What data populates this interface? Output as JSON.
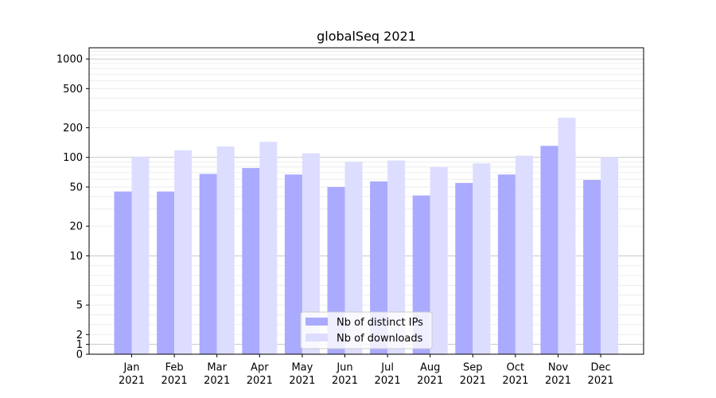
{
  "chart_data": {
    "type": "bar",
    "title": "globalSeq 2021",
    "xlabel": "",
    "ylabel": "",
    "y_scale": "symlog",
    "ylim": [
      0,
      1300
    ],
    "yticks": [
      0,
      1,
      2,
      5,
      10,
      20,
      50,
      100,
      200,
      500,
      1000
    ],
    "ytick_labels": [
      "0",
      "1",
      "2",
      "5",
      "10",
      "20",
      "50",
      "100",
      "200",
      "500",
      "1000"
    ],
    "grid": "horizontal",
    "legend_position": "bottom-center",
    "categories": [
      {
        "month": "Jan",
        "year": "2021"
      },
      {
        "month": "Feb",
        "year": "2021"
      },
      {
        "month": "Mar",
        "year": "2021"
      },
      {
        "month": "Apr",
        "year": "2021"
      },
      {
        "month": "May",
        "year": "2021"
      },
      {
        "month": "Jun",
        "year": "2021"
      },
      {
        "month": "Jul",
        "year": "2021"
      },
      {
        "month": "Aug",
        "year": "2021"
      },
      {
        "month": "Sep",
        "year": "2021"
      },
      {
        "month": "Oct",
        "year": "2021"
      },
      {
        "month": "Nov",
        "year": "2021"
      },
      {
        "month": "Dec",
        "year": "2021"
      }
    ],
    "series": [
      {
        "name": "Nb of distinct IPs",
        "color": "#aaaaff",
        "values": [
          45,
          45,
          68,
          78,
          67,
          50,
          57,
          41,
          55,
          67,
          131,
          59
        ]
      },
      {
        "name": "Nb of downloads",
        "color": "#ddddff",
        "values": [
          102,
          118,
          129,
          144,
          110,
          90,
          93,
          80,
          87,
          104,
          253,
          100
        ]
      }
    ]
  }
}
